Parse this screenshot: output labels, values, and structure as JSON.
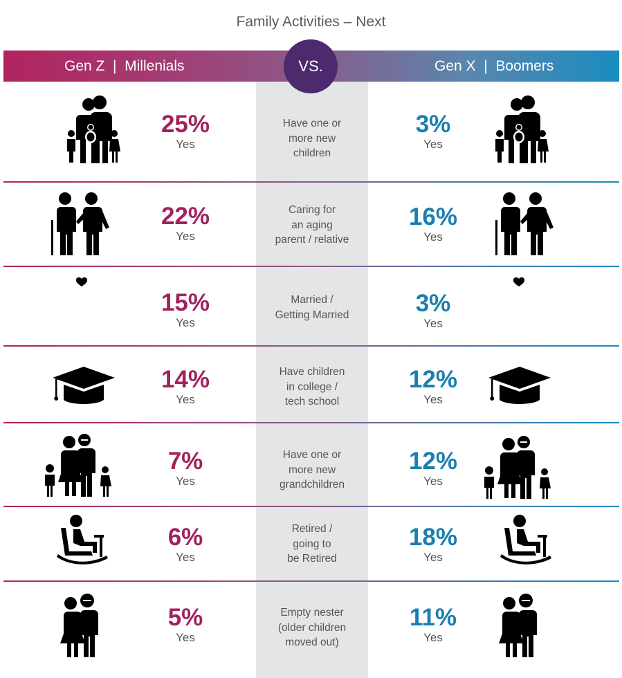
{
  "title": "Family Activities – Next",
  "header": {
    "left_label": "Gen Z  |  Millenials",
    "right_label": "Gen X  |  Boomers",
    "vs_label": "VS."
  },
  "colors": {
    "left_primary": "#a3215e",
    "left_light": "#d9a3b7",
    "right_primary": "#1a7fb0",
    "right_light": "#a9c3de",
    "center_column": "#e4e5e7",
    "vs_circle": "#4d2a6e"
  },
  "rows": [
    {
      "description": "Have one or\nmore new\nchildren",
      "left_pct": "25%",
      "left_yes": "Yes",
      "right_pct": "3%",
      "right_yes": "Yes",
      "icon": "family-with-baby-icon"
    },
    {
      "description": "Caring for\nan aging\nparent / relative",
      "left_pct": "22%",
      "left_yes": "Yes",
      "right_pct": "16%",
      "right_yes": "Yes",
      "icon": "caregiver-elder-icon"
    },
    {
      "description": "Married /\nGetting Married",
      "left_pct": "15%",
      "left_yes": "Yes",
      "right_pct": "3%",
      "right_yes": "Yes",
      "icon": "wedding-rings-icon"
    },
    {
      "description": "Have children\nin college /\ntech school",
      "left_pct": "14%",
      "left_yes": "Yes",
      "right_pct": "12%",
      "right_yes": "Yes",
      "icon": "graduation-cap-icon"
    },
    {
      "description": "Have one or\nmore new\ngrandchildren",
      "left_pct": "7%",
      "left_yes": "Yes",
      "right_pct": "12%",
      "right_yes": "Yes",
      "icon": "grandparents-grandchildren-icon"
    },
    {
      "description": "Retired /\ngoing to\nbe Retired",
      "left_pct": "6%",
      "left_yes": "Yes",
      "right_pct": "18%",
      "right_yes": "Yes",
      "icon": "rocking-chair-icon"
    },
    {
      "description": "Empty nester\n(older children\nmoved out)",
      "left_pct": "5%",
      "left_yes": "Yes",
      "right_pct": "11%",
      "right_yes": "Yes",
      "icon": "elderly-couple-icon"
    }
  ]
}
